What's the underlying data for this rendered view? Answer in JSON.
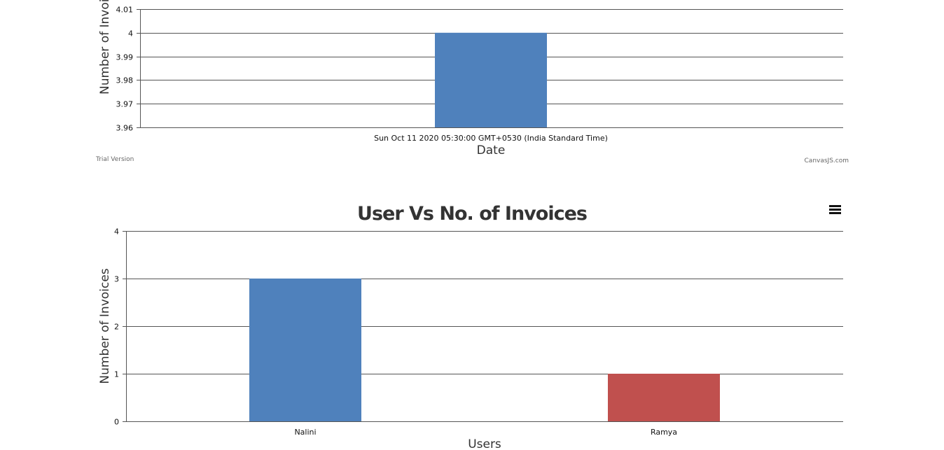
{
  "chart_data": [
    {
      "type": "bar",
      "title": "",
      "xlabel": "Date",
      "ylabel": "Number of Invoices",
      "categories": [
        "Sun Oct 11 2020 05:30:00 GMT+0530 (India Standard Time)"
      ],
      "series": [
        {
          "values": [
            4
          ],
          "colors": [
            "#4f81bc"
          ]
        }
      ],
      "ylim": [
        3.96,
        4.01
      ],
      "yticks": [
        "3.96",
        "3.97",
        "3.98",
        "3.99",
        "4",
        "4.01"
      ],
      "grid": true,
      "credit_left": "Trial Version",
      "credit_right": "CanvasJS.com"
    },
    {
      "type": "bar",
      "title": "User Vs No. of Invoices",
      "xlabel": "Users",
      "ylabel": "Number of Invoices",
      "categories": [
        "Nalini",
        "Ramya"
      ],
      "series": [
        {
          "values": [
            3,
            1
          ],
          "colors": [
            "#4f81bc",
            "#c0504e"
          ]
        }
      ],
      "ylim": [
        0,
        4
      ],
      "yticks": [
        "0",
        "1",
        "2",
        "3",
        "4"
      ],
      "grid": true,
      "menu_icon": "hamburger-menu-icon"
    }
  ]
}
